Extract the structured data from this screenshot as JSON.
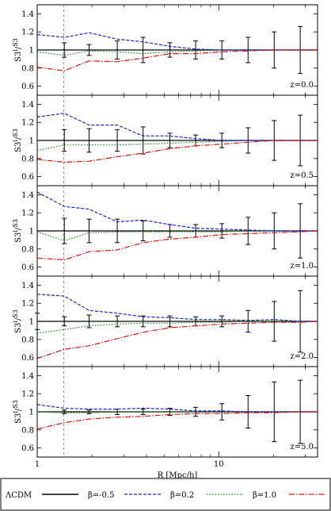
{
  "chart_data": {
    "type": "line",
    "xlabel": "R [Mpc/h]",
    "ylabel": "S3 i / S3 ΛCDM",
    "xscale": "log",
    "xlim": [
      1,
      35
    ],
    "ylim": [
      0.5,
      1.5
    ],
    "yticks": [
      0.6,
      0.8,
      1,
      1.2,
      1.4
    ],
    "ytick_labels": [
      "0.6",
      "0.8",
      "1",
      "1.2",
      "1.4"
    ],
    "xticks": [
      1,
      10
    ],
    "xtick_labels": [
      "1",
      "10"
    ],
    "vline_x": 1.4,
    "legend_position": "bottom",
    "legend": [
      {
        "key": "lcdm",
        "label": "ΛCDM",
        "color": "#000000",
        "dash": "solid"
      },
      {
        "key": "b05",
        "label": "β=-0.5",
        "color": "#1f1fd6",
        "dash": "dashed"
      },
      {
        "key": "b02",
        "label": "β=0.2",
        "color": "#1a8c1a",
        "dash": "dotted"
      },
      {
        "key": "b10",
        "label": "β=1.0",
        "color": "#e01010",
        "dash": "dashdot"
      }
    ],
    "x": [
      1,
      1.41,
      1.93,
      2.76,
      3.83,
      5.38,
      7.46,
      10.4,
      14.5,
      20.2,
      28.1,
      35
    ],
    "panels": [
      {
        "label": "z=0.0",
        "series": {
          "b05": [
            1.17,
            1.14,
            1.19,
            1.12,
            1.09,
            1.04,
            1.01,
            1.0,
            1.0,
            1.0,
            1.0,
            1.0
          ],
          "b02": [
            0.98,
            0.94,
            0.99,
            0.98,
            0.96,
            0.98,
            0.99,
            1.0,
            1.0,
            1.0,
            1.0,
            1.0
          ],
          "b10": [
            0.81,
            0.77,
            0.88,
            0.87,
            0.91,
            0.96,
            0.96,
            0.98,
            0.99,
            1.0,
            1.0,
            1.0
          ]
        },
        "errors": [
          0.0,
          0.08,
          0.06,
          0.1,
          0.14,
          0.08,
          0.1,
          0.1,
          0.14,
          0.2,
          0.26,
          0.0
        ]
      },
      {
        "label": "z=0.5",
        "series": {
          "b05": [
            1.26,
            1.3,
            1.17,
            1.17,
            1.05,
            1.05,
            1.02,
            1.0,
            1.0,
            1.0,
            1.0,
            1.0
          ],
          "b02": [
            0.89,
            0.95,
            0.95,
            0.95,
            0.96,
            0.97,
            0.98,
            0.99,
            1.0,
            1.0,
            1.0,
            1.0
          ],
          "b10": [
            0.79,
            0.76,
            0.77,
            0.82,
            0.86,
            0.91,
            0.94,
            0.96,
            0.98,
            1.0,
            1.0,
            1.0
          ]
        },
        "errors": [
          0.0,
          0.12,
          0.13,
          0.12,
          0.15,
          0.08,
          0.06,
          0.08,
          0.14,
          0.22,
          0.28,
          0.0
        ]
      },
      {
        "label": "z=1.0",
        "series": {
          "b05": [
            1.43,
            1.27,
            1.24,
            1.1,
            1.12,
            1.07,
            1.03,
            1.02,
            1.01,
            1.0,
            1.0,
            1.0
          ],
          "b02": [
            0.99,
            0.89,
            0.98,
            0.99,
            0.99,
            0.99,
            0.99,
            0.99,
            1.0,
            1.0,
            1.0,
            1.0
          ],
          "b10": [
            0.7,
            0.68,
            0.77,
            0.79,
            0.87,
            0.91,
            0.93,
            0.96,
            0.97,
            0.98,
            0.99,
            1.0
          ]
        },
        "errors": [
          0.0,
          0.14,
          0.13,
          0.13,
          0.11,
          0.07,
          0.07,
          0.08,
          0.15,
          0.2,
          0.3,
          0.0
        ]
      },
      {
        "label": "z=2.0",
        "series": {
          "b05": [
            1.3,
            1.28,
            1.12,
            1.09,
            1.05,
            1.04,
            1.02,
            1.02,
            1.01,
            1.02,
            1.0,
            1.0
          ],
          "b02": [
            0.87,
            0.91,
            0.95,
            0.97,
            0.98,
            0.98,
            0.99,
            0.99,
            1.0,
            1.0,
            1.0,
            1.0
          ],
          "b10": [
            0.59,
            0.69,
            0.73,
            0.81,
            0.88,
            0.93,
            0.95,
            0.97,
            0.98,
            0.99,
            0.99,
            1.0
          ]
        },
        "errors": [
          0.09,
          0.05,
          0.07,
          0.06,
          0.06,
          0.06,
          0.05,
          0.06,
          0.12,
          0.22,
          0.34,
          0.0
        ]
      },
      {
        "label": "z=5.0",
        "series": {
          "b05": [
            1.08,
            1.04,
            1.03,
            1.03,
            1.04,
            1.03,
            1.01,
            1.01,
            1.0,
            1.0,
            1.0,
            1.0
          ],
          "b02": [
            1.0,
            0.99,
            0.99,
            1.0,
            1.0,
            1.0,
            1.0,
            1.0,
            1.0,
            1.0,
            1.0,
            1.0
          ],
          "b10": [
            0.81,
            0.88,
            0.92,
            0.94,
            0.95,
            0.97,
            0.98,
            0.98,
            0.99,
            0.99,
            1.0,
            1.0
          ]
        },
        "errors": [
          0.0,
          0.02,
          0.02,
          0.03,
          0.03,
          0.04,
          0.05,
          0.09,
          0.18,
          0.33,
          0.35,
          0.0
        ]
      }
    ]
  }
}
